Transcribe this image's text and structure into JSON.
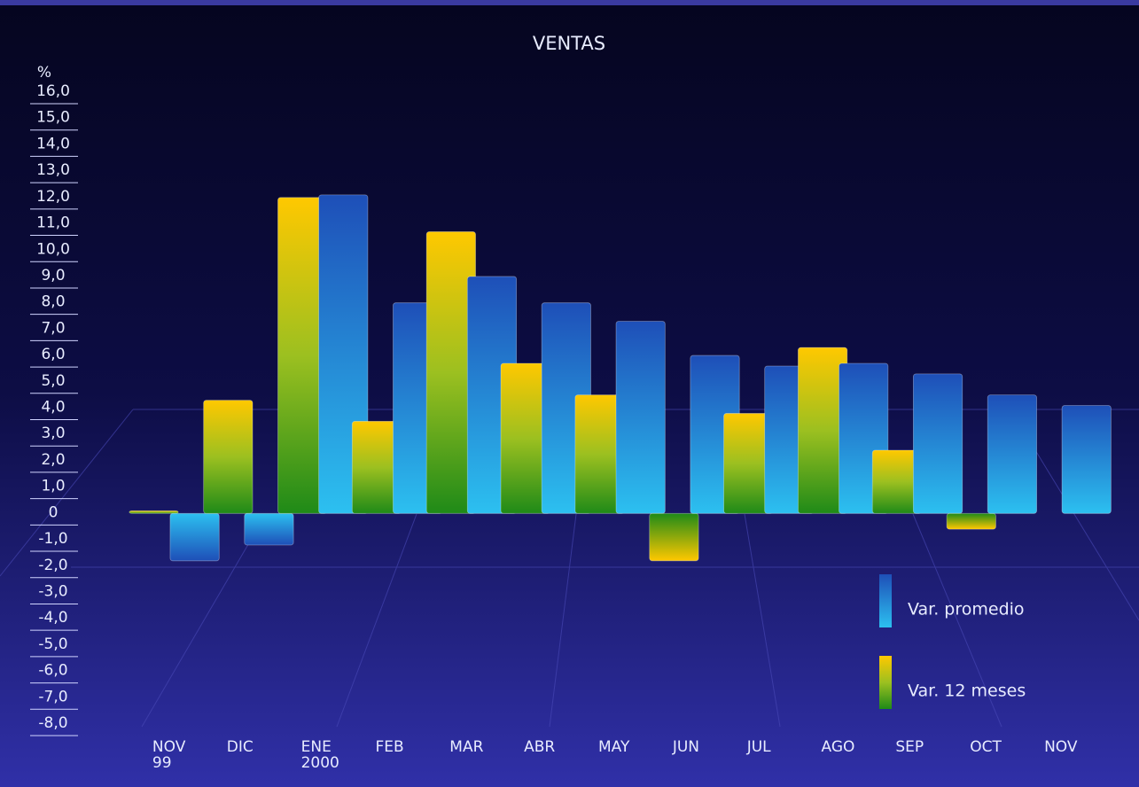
{
  "chart_data": {
    "type": "bar",
    "title": "VENTAS",
    "y_label": "%",
    "categories": [
      "NOV 99",
      "DIC",
      "ENE 2000",
      "FEB",
      "MAR",
      "ABR",
      "MAY",
      "JUN",
      "JUL",
      "AGO",
      "SEP",
      "OCT",
      "NOV"
    ],
    "series": [
      {
        "name": "Var. 12 meses",
        "color": "#f5c400",
        "values": [
          0.1,
          4.3,
          12.0,
          3.5,
          10.7,
          5.7,
          4.5,
          -1.8,
          3.8,
          6.3,
          2.4,
          -0.6,
          null
        ]
      },
      {
        "name": "Var. promedio",
        "color": "#2a6fd0",
        "values": [
          -1.8,
          -1.2,
          12.1,
          8.0,
          9.0,
          8.0,
          7.3,
          6.0,
          5.6,
          5.7,
          5.3,
          4.5,
          4.1
        ]
      }
    ],
    "ylim": [
      -8,
      16
    ],
    "yticks": [
      {
        "value": -8,
        "label": "-8,0"
      },
      {
        "value": -7,
        "label": "-7,0"
      },
      {
        "value": -6,
        "label": "-6,0"
      },
      {
        "value": -5,
        "label": "-5,0"
      },
      {
        "value": -4,
        "label": "-4,0"
      },
      {
        "value": -3,
        "label": "-3,0"
      },
      {
        "value": -2,
        "label": "-2,0"
      },
      {
        "value": -1,
        "label": "-1,0"
      },
      0,
      {
        "value": 1,
        "label": "1,0"
      },
      {
        "value": 2,
        "label": "2,0"
      },
      {
        "value": 3,
        "label": "3,0"
      },
      {
        "value": 4,
        "label": "4,0"
      },
      {
        "value": 5,
        "label": "5,0"
      },
      {
        "value": 6,
        "label": "6,0"
      },
      {
        "value": 7,
        "label": "7,0"
      },
      {
        "value": 8,
        "label": "8,0"
      },
      {
        "value": 9,
        "label": "9,0"
      },
      {
        "value": 10,
        "label": "10,0"
      },
      {
        "value": 11,
        "label": "11,0"
      },
      {
        "value": 12,
        "label": "12,0"
      },
      {
        "value": 13,
        "label": "13,0"
      },
      {
        "value": 14,
        "label": "14,0"
      },
      {
        "value": 15,
        "label": "15,0"
      },
      {
        "value": 16,
        "label": "16,0"
      }
    ],
    "legend": "bottom-right"
  }
}
